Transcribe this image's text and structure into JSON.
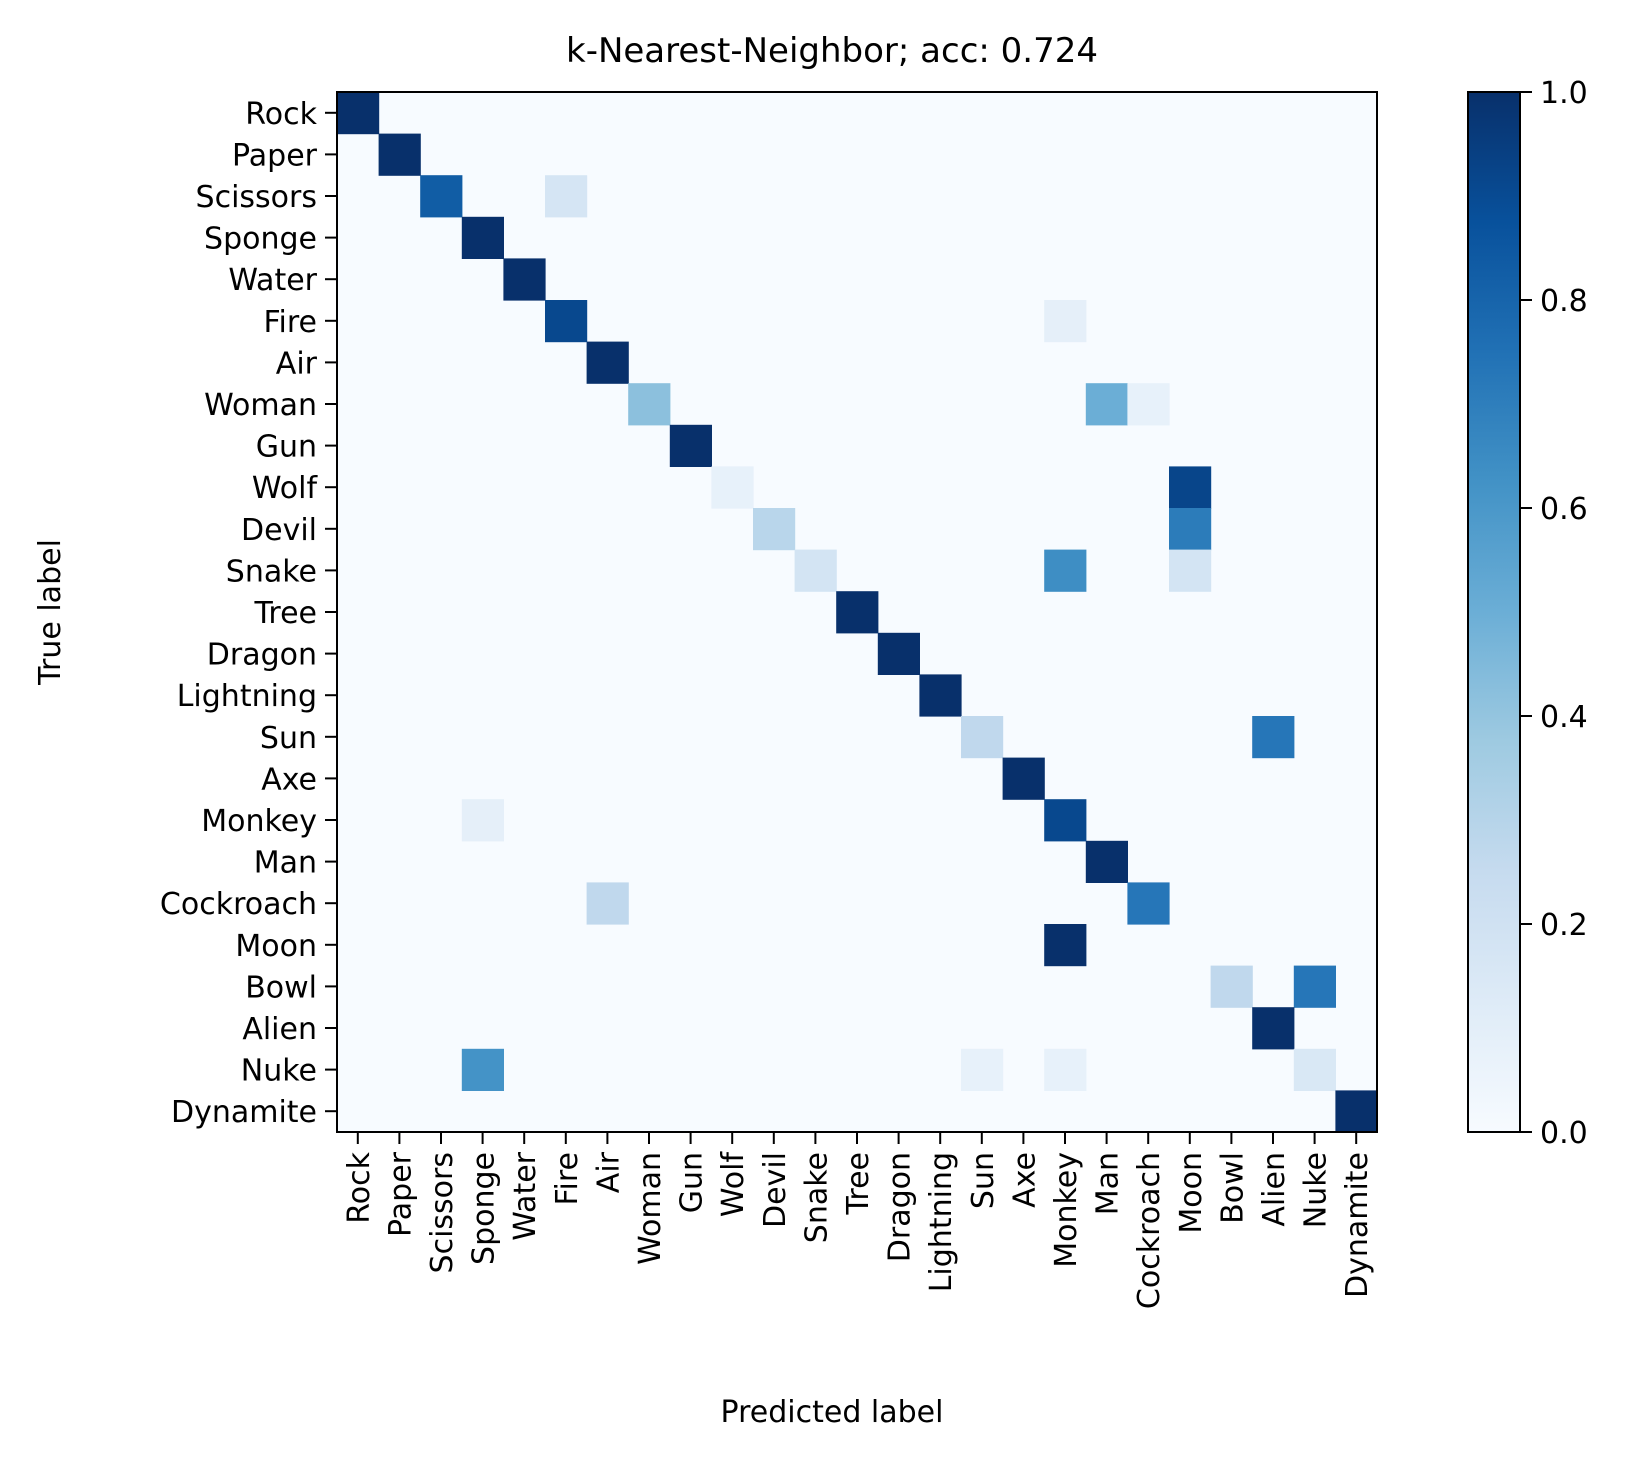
{
  "chart_data": {
    "type": "heatmap",
    "title": "k-Nearest-Neighbor; acc: 0.724",
    "xlabel": "Predicted label",
    "ylabel": "True label",
    "labels": [
      "Rock",
      "Paper",
      "Scissors",
      "Sponge",
      "Water",
      "Fire",
      "Air",
      "Woman",
      "Gun",
      "Wolf",
      "Devil",
      "Snake",
      "Tree",
      "Dragon",
      "Lightning",
      "Sun",
      "Axe",
      "Monkey",
      "Man",
      "Cockroach",
      "Moon",
      "Bowl",
      "Alien",
      "Nuke",
      "Dynamite"
    ],
    "colorbar": {
      "min": 0.0,
      "max": 1.0,
      "ticks": [
        "0.0",
        "0.2",
        "0.4",
        "0.6",
        "0.8",
        "1.0"
      ]
    },
    "colormap": [
      "#f7fbff",
      "#deebf7",
      "#c6dbef",
      "#9ecae1",
      "#6baed6",
      "#4292c6",
      "#2171b5",
      "#08519c",
      "#08306b"
    ],
    "cells": [
      {
        "true": "Rock",
        "pred": "Rock",
        "value": 1.0
      },
      {
        "true": "Paper",
        "pred": "Paper",
        "value": 1.0
      },
      {
        "true": "Scissors",
        "pred": "Scissors",
        "value": 0.83
      },
      {
        "true": "Scissors",
        "pred": "Fire",
        "value": 0.17
      },
      {
        "true": "Sponge",
        "pred": "Sponge",
        "value": 1.0
      },
      {
        "true": "Water",
        "pred": "Water",
        "value": 1.0
      },
      {
        "true": "Fire",
        "pred": "Fire",
        "value": 0.91
      },
      {
        "true": "Fire",
        "pred": "Monkey",
        "value": 0.09
      },
      {
        "true": "Air",
        "pred": "Air",
        "value": 1.0
      },
      {
        "true": "Woman",
        "pred": "Woman",
        "value": 0.42
      },
      {
        "true": "Woman",
        "pred": "Man",
        "value": 0.5
      },
      {
        "true": "Woman",
        "pred": "Cockroach",
        "value": 0.08
      },
      {
        "true": "Gun",
        "pred": "Gun",
        "value": 1.0
      },
      {
        "true": "Wolf",
        "pred": "Wolf",
        "value": 0.08
      },
      {
        "true": "Wolf",
        "pred": "Moon",
        "value": 0.92
      },
      {
        "true": "Devil",
        "pred": "Devil",
        "value": 0.29
      },
      {
        "true": "Devil",
        "pred": "Moon",
        "value": 0.71
      },
      {
        "true": "Snake",
        "pred": "Snake",
        "value": 0.18
      },
      {
        "true": "Snake",
        "pred": "Monkey",
        "value": 0.64
      },
      {
        "true": "Snake",
        "pred": "Moon",
        "value": 0.18
      },
      {
        "true": "Tree",
        "pred": "Tree",
        "value": 1.0
      },
      {
        "true": "Dragon",
        "pred": "Dragon",
        "value": 1.0
      },
      {
        "true": "Lightning",
        "pred": "Lightning",
        "value": 1.0
      },
      {
        "true": "Sun",
        "pred": "Sun",
        "value": 0.27
      },
      {
        "true": "Sun",
        "pred": "Alien",
        "value": 0.73
      },
      {
        "true": "Axe",
        "pred": "Axe",
        "value": 1.0
      },
      {
        "true": "Monkey",
        "pred": "Sponge",
        "value": 0.09
      },
      {
        "true": "Monkey",
        "pred": "Monkey",
        "value": 0.91
      },
      {
        "true": "Man",
        "pred": "Man",
        "value": 1.0
      },
      {
        "true": "Cockroach",
        "pred": "Air",
        "value": 0.27
      },
      {
        "true": "Cockroach",
        "pred": "Cockroach",
        "value": 0.73
      },
      {
        "true": "Moon",
        "pred": "Monkey",
        "value": 1.0
      },
      {
        "true": "Bowl",
        "pred": "Bowl",
        "value": 0.27
      },
      {
        "true": "Bowl",
        "pred": "Nuke",
        "value": 0.73
      },
      {
        "true": "Alien",
        "pred": "Alien",
        "value": 1.0
      },
      {
        "true": "Nuke",
        "pred": "Sponge",
        "value": 0.62
      },
      {
        "true": "Nuke",
        "pred": "Sun",
        "value": 0.08
      },
      {
        "true": "Nuke",
        "pred": "Monkey",
        "value": 0.08
      },
      {
        "true": "Nuke",
        "pred": "Nuke",
        "value": 0.15
      },
      {
        "true": "Dynamite",
        "pred": "Dynamite",
        "value": 1.0
      }
    ]
  }
}
